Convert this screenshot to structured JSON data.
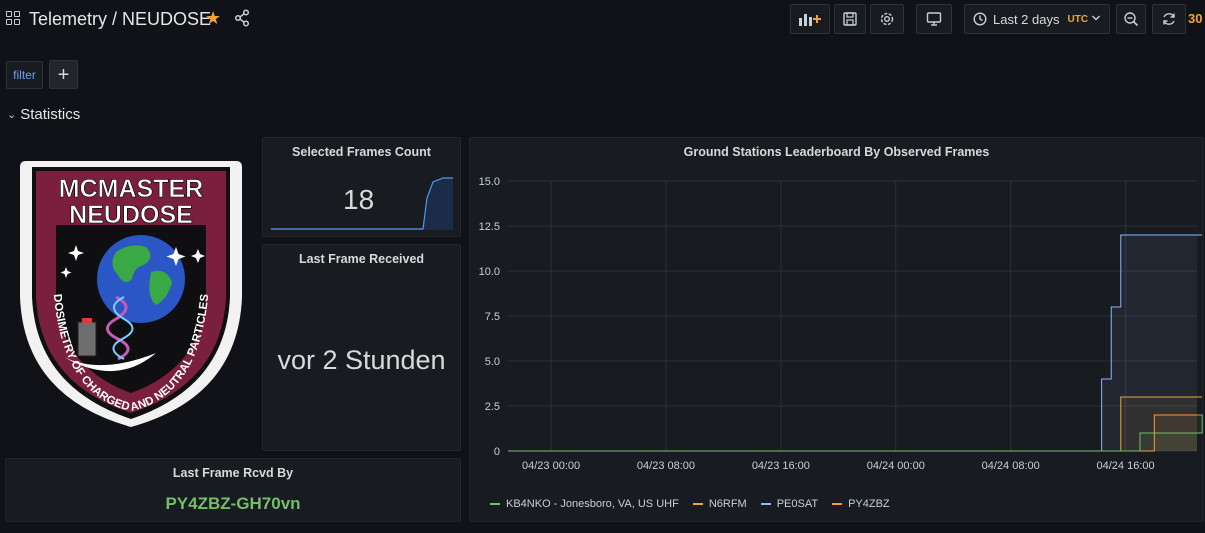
{
  "header": {
    "title": "Telemetry / NEUDOSE",
    "timepicker": {
      "label": "Last 2 days",
      "timezone": "UTC"
    },
    "refresh_interval": "30"
  },
  "variables": {
    "filter_label": "filter",
    "add_label": "+"
  },
  "row": {
    "title": "Statistics"
  },
  "logo": {
    "top_text_1": "MCMASTER",
    "top_text_2": "NEUDOSE",
    "arc_text": "DOSIMETRY OF CHARGED AND NEUTRAL PARTICLES"
  },
  "panels": {
    "selected_frames": {
      "title": "Selected Frames Count",
      "value": "18"
    },
    "last_frame": {
      "title": "Last Frame Received",
      "value": "vor 2 Stunden"
    },
    "last_frame_by": {
      "title": "Last Frame Rcvd By",
      "value": "PY4ZBZ-GH70vn"
    },
    "leaderboard": {
      "title": "Ground Stations Leaderboard By Observed Frames"
    }
  },
  "colors": {
    "green": "#73bf69",
    "orange": "#f2a33a",
    "blue": "#8ab8ff",
    "background": "#111217",
    "panel": "#181b1f"
  },
  "chart_data": {
    "type": "line",
    "title": "Ground Stations Leaderboard By Observed Frames",
    "ylim": [
      0,
      15
    ],
    "yticks": [
      "0",
      "2.5",
      "5.0",
      "7.5",
      "10.0",
      "12.5",
      "15.0"
    ],
    "xticks": [
      "04/23 00:00",
      "04/23 08:00",
      "04/23 16:00",
      "04/24 00:00",
      "04/24 08:00",
      "04/24 16:00"
    ],
    "x": [
      "04/22 21:00",
      "04/24 14:00",
      "04/24 14:20",
      "04/24 15:00",
      "04/24 15:40",
      "04/24 17:00",
      "04/24 18:00",
      "04/24 21:20"
    ],
    "series": [
      {
        "name": "KB4NKO - Jonesboro, VA, US UHF",
        "color": "#73bf69",
        "values": [
          0,
          0,
          0,
          0,
          0,
          1,
          1,
          2
        ]
      },
      {
        "name": "N6RFM",
        "color": "#f2a33a",
        "values": [
          0,
          0,
          0,
          0,
          3,
          3,
          3,
          3
        ]
      },
      {
        "name": "PE0SAT",
        "color": "#8ab8ff",
        "values": [
          0,
          0,
          4,
          8,
          12,
          12,
          12,
          12
        ]
      },
      {
        "name": "PY4ZBZ",
        "color": "#ff9830",
        "values": [
          0,
          0,
          0,
          0,
          0,
          0,
          2,
          2
        ]
      }
    ],
    "legend_position": "bottom-left",
    "grid": true
  }
}
